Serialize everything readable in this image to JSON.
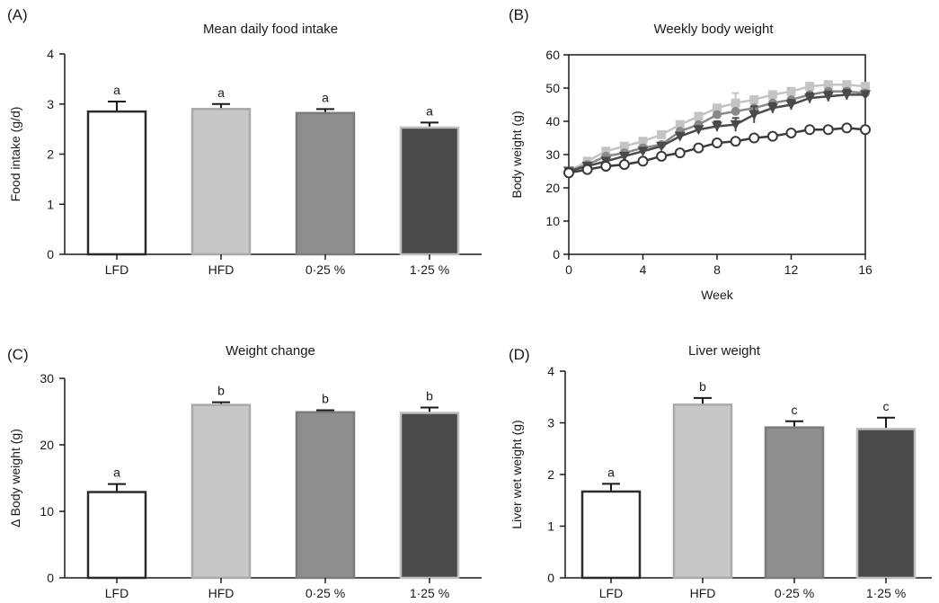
{
  "figure": {
    "panels": [
      {
        "letter": "(A)",
        "title": "Mean daily food intake"
      },
      {
        "letter": "(B)",
        "title": "Weekly body weight"
      },
      {
        "letter": "(C)",
        "title": "Weight change"
      },
      {
        "letter": "(D)",
        "title": "Liver weight"
      }
    ]
  },
  "chart_data": [
    {
      "type": "bar",
      "title": "Mean daily food intake",
      "xlabel": "",
      "ylabel": "Food intake (g/d)",
      "ylim": [
        0,
        4
      ],
      "yticks": [
        "0",
        "1",
        "2",
        "3",
        "4"
      ],
      "categories": [
        "LFD",
        "HFD",
        "0·25 %",
        "1·25 %"
      ],
      "values": [
        2.85,
        2.9,
        2.82,
        2.53
      ],
      "errors": [
        0.2,
        0.1,
        0.08,
        0.1
      ],
      "significance": [
        "a",
        "a",
        "a",
        "a"
      ],
      "bar_colors": [
        "#ffffff",
        "#c7c7c7",
        "#8e8e8e",
        "#4a4a4a"
      ],
      "bar_strokes": [
        "#2b2b2b",
        "#a9a9a9",
        "#7a7a7a",
        "#bdbdbd"
      ]
    },
    {
      "type": "line",
      "title": "Weekly body weight",
      "xlabel": "Week",
      "ylabel": "Body weight (g)",
      "xlim": [
        0,
        16
      ],
      "ylim": [
        0,
        60
      ],
      "xticks": [
        "0",
        "4",
        "8",
        "12",
        "16"
      ],
      "yticks": [
        "0",
        "10",
        "20",
        "30",
        "40",
        "50",
        "60"
      ],
      "x": [
        0,
        1,
        2,
        3,
        4,
        5,
        6,
        7,
        8,
        9,
        10,
        11,
        12,
        13,
        14,
        15,
        16
      ],
      "series": [
        {
          "color": "#c4c4c4",
          "marker": "square",
          "values": [
            25,
            28,
            31,
            32.5,
            34,
            36,
            39,
            41.5,
            44,
            45.5,
            46.5,
            48,
            49,
            50.5,
            51,
            51,
            50.5
          ],
          "errors": [
            0,
            0,
            0,
            0,
            0,
            0,
            0,
            0,
            0,
            3,
            0,
            0,
            0,
            0,
            0,
            0,
            0
          ]
        },
        {
          "color": "#8a8a8a",
          "marker": "circle-filled",
          "values": [
            25,
            27,
            29.5,
            30.5,
            32,
            33,
            37,
            39,
            42,
            43,
            44,
            45.5,
            46.5,
            48,
            49,
            49,
            48.5
          ],
          "errors": [
            0,
            0,
            0,
            0,
            0,
            0,
            0,
            0,
            0,
            0,
            0,
            0,
            0,
            0,
            0,
            0,
            0
          ]
        },
        {
          "color": "#4a4a4a",
          "marker": "triangle-down",
          "values": [
            25,
            26.5,
            28,
            29.5,
            31,
            32.5,
            35.5,
            37.5,
            38.5,
            39,
            42,
            44,
            45,
            47,
            47.5,
            48,
            48
          ],
          "errors": [
            0,
            0,
            0,
            0,
            0,
            0,
            0,
            0,
            1.5,
            2,
            2.5,
            1.5,
            1.5,
            1.5,
            1.5,
            1.5,
            1
          ]
        },
        {
          "color": "#3a3a3a",
          "marker": "circle-open",
          "values": [
            24.5,
            25.5,
            26.5,
            27,
            28,
            29.5,
            30.5,
            32,
            33.5,
            34,
            35,
            35.5,
            36.5,
            37.5,
            37.5,
            38,
            37.5
          ],
          "errors": [
            0,
            0,
            0,
            0,
            0,
            0,
            0,
            0,
            0,
            0,
            0,
            0,
            0,
            0,
            0,
            0,
            0
          ]
        }
      ]
    },
    {
      "type": "bar",
      "title": "Weight change",
      "xlabel": "",
      "ylabel": "Δ Body weight (g)",
      "ylim": [
        0,
        30
      ],
      "yticks": [
        "0",
        "10",
        "20",
        "30"
      ],
      "categories": [
        "LFD",
        "HFD",
        "0·25 %",
        "1·25 %"
      ],
      "values": [
        12.9,
        26,
        24.9,
        24.8
      ],
      "errors": [
        1.2,
        0.4,
        0.3,
        0.8
      ],
      "significance": [
        "a",
        "b",
        "b",
        "b"
      ],
      "bar_colors": [
        "#ffffff",
        "#c7c7c7",
        "#8e8e8e",
        "#4a4a4a"
      ],
      "bar_strokes": [
        "#2b2b2b",
        "#a9a9a9",
        "#7a7a7a",
        "#bdbdbd"
      ]
    },
    {
      "type": "bar",
      "title": "Liver weight",
      "xlabel": "",
      "ylabel": "Liver wet weight (g)",
      "ylim": [
        0,
        4
      ],
      "yticks": [
        "0",
        "1",
        "2",
        "3",
        "4"
      ],
      "categories": [
        "LFD",
        "HFD",
        "0·25 %",
        "1·25 %"
      ],
      "values": [
        1.67,
        3.35,
        2.91,
        2.88
      ],
      "errors": [
        0.15,
        0.13,
        0.12,
        0.22
      ],
      "significance": [
        "a",
        "b",
        "c",
        "c"
      ],
      "bar_colors": [
        "#ffffff",
        "#c7c7c7",
        "#8e8e8e",
        "#4a4a4a"
      ],
      "bar_strokes": [
        "#2b2b2b",
        "#a9a9a9",
        "#7a7a7a",
        "#bdbdbd"
      ]
    }
  ]
}
